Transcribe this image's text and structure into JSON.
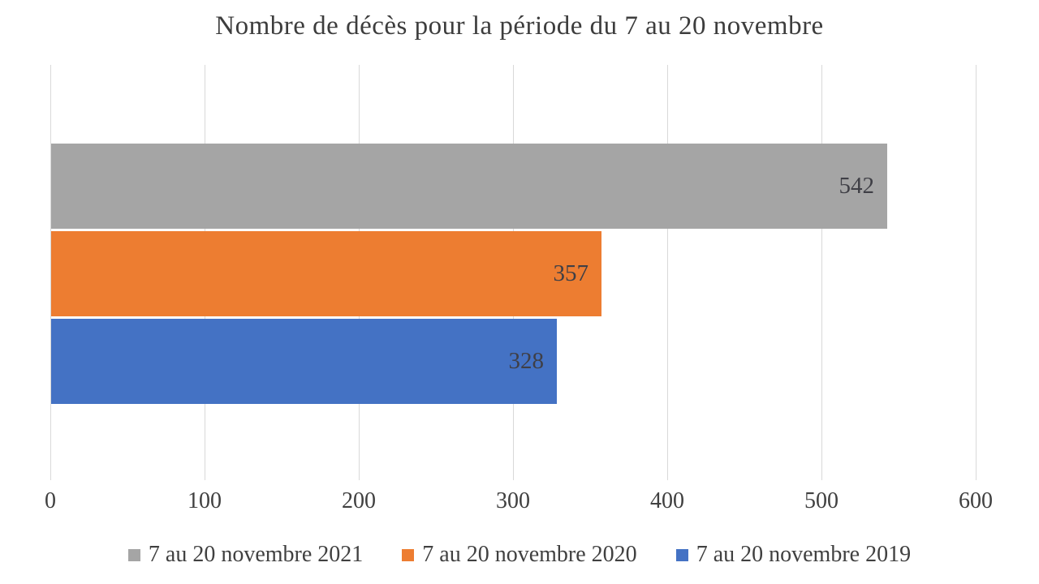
{
  "chart_data": {
    "type": "bar",
    "orientation": "horizontal",
    "title": "Nombre de décès pour la période du 7 au 20 novembre",
    "series": [
      {
        "name": "7 au 20 novembre 2021",
        "value": 542,
        "label": "542",
        "color": "#A5A5A5"
      },
      {
        "name": "7 au 20 novembre 2020",
        "value": 357,
        "label": "357",
        "color": "#ED7D31"
      },
      {
        "name": "7 au 20 novembre 2019",
        "value": 328,
        "label": "328",
        "color": "#4472C4"
      }
    ],
    "xlim": [
      0,
      600
    ],
    "x_ticks": [
      "0",
      "100",
      "200",
      "300",
      "400",
      "500",
      "600"
    ],
    "grid": "vertical-on",
    "legend_position": "bottom",
    "data_labels": "inside-end",
    "colors": {
      "gridline": "#D9D9D9",
      "title_text": "#3D3D3D",
      "tick_text": "#404040",
      "label_text": "#3F3F46",
      "background": "#FFFFFF"
    }
  }
}
